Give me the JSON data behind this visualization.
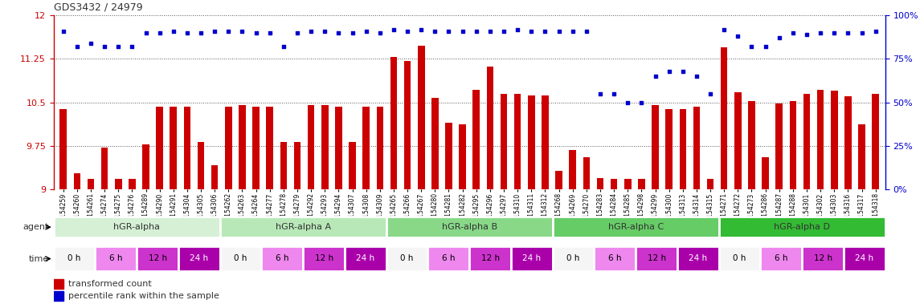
{
  "title": "GDS3432 / 24979",
  "ylim_left": [
    9,
    12
  ],
  "ylim_right": [
    0,
    100
  ],
  "yticks_left": [
    9,
    9.75,
    10.5,
    11.25,
    12
  ],
  "yticks_right": [
    0,
    25,
    50,
    75,
    100
  ],
  "left_axis_color": "#cc0000",
  "right_axis_color": "#0000cc",
  "bar_color": "#cc0000",
  "dot_color": "#0000cc",
  "samples": [
    "GSM154259",
    "GSM154260",
    "GSM154261",
    "GSM154274",
    "GSM154275",
    "GSM154276",
    "GSM154289",
    "GSM154290",
    "GSM154291",
    "GSM154304",
    "GSM154305",
    "GSM154306",
    "GSM154262",
    "GSM154263",
    "GSM154264",
    "GSM154277",
    "GSM154278",
    "GSM154279",
    "GSM154292",
    "GSM154293",
    "GSM154294",
    "GSM154307",
    "GSM154308",
    "GSM154309",
    "GSM154265",
    "GSM154266",
    "GSM154267",
    "GSM154280",
    "GSM154281",
    "GSM154282",
    "GSM154295",
    "GSM154296",
    "GSM154297",
    "GSM154310",
    "GSM154311",
    "GSM154312",
    "GSM154268",
    "GSM154269",
    "GSM154270",
    "GSM154283",
    "GSM154284",
    "GSM154285",
    "GSM154298",
    "GSM154299",
    "GSM154300",
    "GSM154313",
    "GSM154314",
    "GSM154315",
    "GSM154271",
    "GSM154272",
    "GSM154273",
    "GSM154286",
    "GSM154287",
    "GSM154288",
    "GSM154301",
    "GSM154302",
    "GSM154303",
    "GSM154316",
    "GSM154317",
    "GSM154318"
  ],
  "bar_values": [
    10.38,
    9.28,
    9.18,
    9.72,
    9.18,
    9.18,
    9.78,
    10.42,
    10.42,
    10.42,
    9.82,
    9.42,
    10.42,
    10.45,
    10.42,
    10.42,
    9.82,
    9.82,
    10.45,
    10.45,
    10.42,
    9.82,
    10.42,
    10.42,
    11.28,
    11.22,
    11.48,
    10.58,
    10.15,
    10.12,
    10.72,
    11.12,
    10.65,
    10.65,
    10.62,
    10.62,
    9.32,
    9.68,
    9.55,
    9.2,
    9.18,
    9.18,
    9.18,
    10.45,
    10.38,
    10.38,
    10.42,
    9.18,
    11.45,
    10.68,
    10.52,
    9.55,
    10.48,
    10.52,
    10.65,
    10.72,
    10.7,
    10.6,
    10.12,
    10.65
  ],
  "dot_values": [
    91,
    82,
    84,
    82,
    82,
    82,
    90,
    90,
    91,
    90,
    90,
    91,
    91,
    91,
    90,
    90,
    82,
    90,
    91,
    91,
    90,
    90,
    91,
    90,
    92,
    91,
    92,
    91,
    91,
    91,
    91,
    91,
    91,
    92,
    91,
    91,
    91,
    91,
    91,
    55,
    55,
    50,
    50,
    65,
    68,
    68,
    65,
    55,
    92,
    88,
    82,
    82,
    87,
    90,
    89,
    90,
    90,
    90,
    90,
    91
  ],
  "agents": [
    {
      "label": "hGR-alpha",
      "start": 0,
      "end": 12
    },
    {
      "label": "hGR-alpha A",
      "start": 12,
      "end": 24
    },
    {
      "label": "hGR-alpha B",
      "start": 24,
      "end": 36
    },
    {
      "label": "hGR-alpha C",
      "start": 36,
      "end": 48
    },
    {
      "label": "hGR-alpha D",
      "start": 48,
      "end": 60
    }
  ],
  "agent_colors": [
    "#d5f0d5",
    "#b8e8b8",
    "#88d888",
    "#66cc66",
    "#33bb33"
  ],
  "time_labels": [
    "0 h",
    "6 h",
    "12 h",
    "24 h"
  ],
  "time_colors": [
    "#f5f5f5",
    "#ee88ee",
    "#cc33cc",
    "#aa00aa"
  ],
  "time_text_colors": [
    "#000000",
    "#000000",
    "#000000",
    "#ffffff"
  ],
  "grid_color": "#555555",
  "bg_color": "#ffffff",
  "bar_width": 0.5
}
